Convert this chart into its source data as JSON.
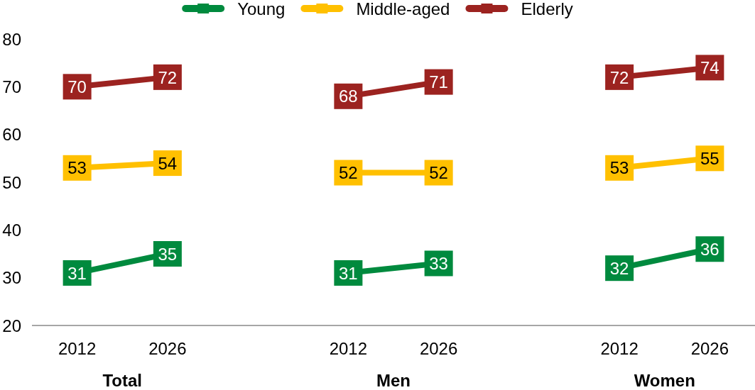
{
  "chart_data": {
    "type": "line",
    "categories": [
      "2012",
      "2026",
      null,
      "2012",
      "2026",
      null,
      "2012",
      "2026"
    ],
    "series": [
      {
        "name": "Young",
        "color": "#008a3e",
        "values": [
          31,
          35,
          null,
          31,
          33,
          null,
          32,
          36
        ]
      },
      {
        "name": "Middle-aged",
        "color": "#ffc000",
        "values": [
          53,
          54,
          null,
          52,
          52,
          null,
          53,
          55
        ]
      },
      {
        "name": "Elderly",
        "color": "#9c2320",
        "values": [
          70,
          72,
          null,
          68,
          71,
          null,
          72,
          74
        ]
      }
    ],
    "ylim": [
      20,
      80
    ],
    "yticks": [
      20,
      30,
      40,
      50,
      60,
      70,
      80
    ],
    "data_labels": true,
    "legend": "top",
    "marker": "square",
    "line_style": "solid",
    "annotations": [
      "Total",
      "Men",
      "Women"
    ]
  }
}
